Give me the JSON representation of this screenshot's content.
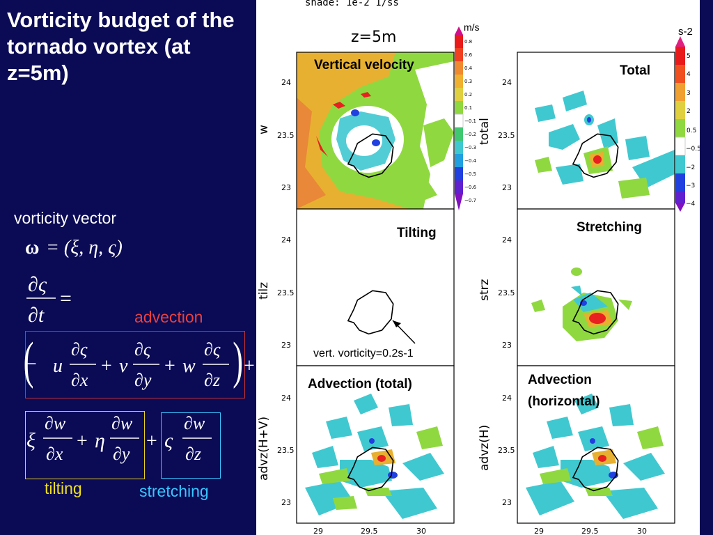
{
  "slide": {
    "title": "Vorticity budget of the tornado vortex (at z=5m)",
    "vorticity_vector_label": "vorticity vector",
    "advection_label": "advection",
    "tilting_label": "tilting",
    "stretching_label": "stretching",
    "colors": {
      "background": "#0a0a55",
      "advection": "#e84040",
      "tilting": "#f0e020",
      "stretching": "#38c8ff"
    }
  },
  "equations": {
    "omega_symbol": "ω",
    "omega_def": "= (ξ, η, ς)",
    "partial": "∂",
    "zeta": "ς",
    "t": "t",
    "equals": "=",
    "minus": "−",
    "plus": "+",
    "u": "u",
    "v": "v",
    "w": "w",
    "x": "x",
    "y": "y",
    "z": "z",
    "xi": "ξ",
    "eta": "η",
    "lparen": "(",
    "rparen": ")"
  },
  "figure": {
    "header": "shade: 1e-2 1/ss",
    "height_label": "z=5m",
    "velocity_unit": "m/s",
    "vorticity_unit": "s-2",
    "annotation": "vert. vorticity=0.2s-1",
    "x_ticks": [
      "29",
      "29.5",
      "30"
    ],
    "y_ticks": [
      "24",
      "23.5",
      "23"
    ],
    "velocity_colorbar": [
      "0.8",
      "0.6",
      "0.4",
      "0.3",
      "0.2",
      "0.1",
      "−0.1",
      "−0.2",
      "−0.3",
      "−0.4",
      "−0.5",
      "−0.6",
      "−0.7"
    ],
    "vorticity_colorbar": [
      "5",
      "4",
      "3",
      "2",
      "0.5",
      "−0.5",
      "−2",
      "−3",
      "−4"
    ],
    "panels": [
      {
        "title": "Vertical velocity",
        "side_label": "w"
      },
      {
        "title": "Total",
        "side_label": "total"
      },
      {
        "title": "Tilting",
        "side_label": "tilz"
      },
      {
        "title": "Stretching",
        "side_label": "strz"
      },
      {
        "title": "Advection (total)",
        "side_label": "advz(H+V)"
      },
      {
        "title": "Advection (horizontal)",
        "title_line1": "Advection",
        "title_line2": "(horizontal)",
        "side_label": "advz(H)"
      }
    ]
  }
}
